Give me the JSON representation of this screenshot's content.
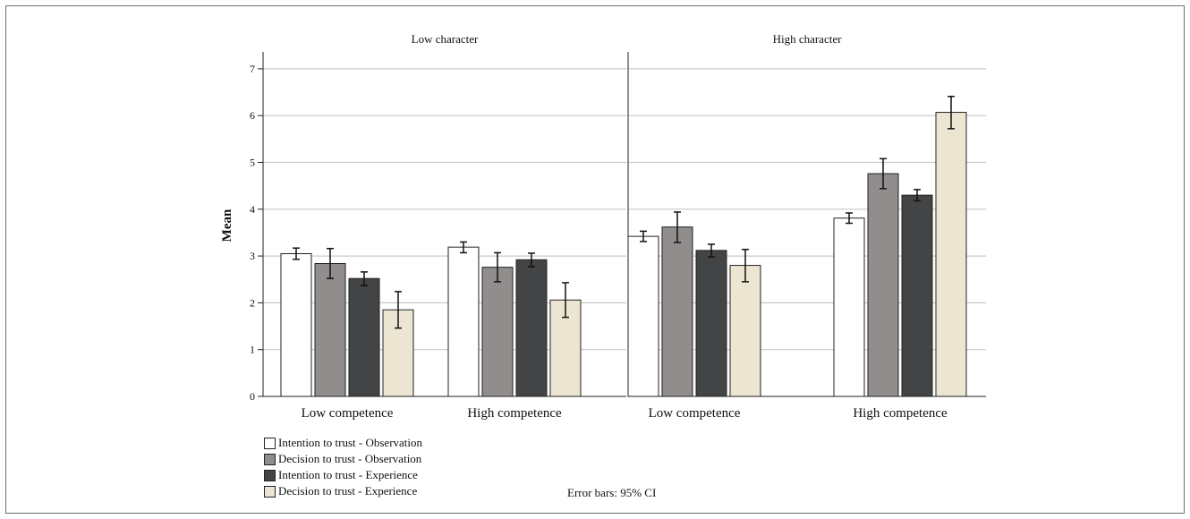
{
  "chart_data": {
    "type": "bar",
    "ylabel": "Mean",
    "ylim": [
      0,
      7
    ],
    "yticks": [
      0,
      1,
      2,
      3,
      4,
      5,
      6,
      7
    ],
    "grid": true,
    "legend_position": "bottom-left",
    "footnote": "Error bars: 95% CI",
    "panels": [
      {
        "title": "Low character",
        "categories": [
          "Low competence",
          "High competence"
        ],
        "series": [
          {
            "name": "Intention to trust - Observation",
            "values": [
              3.05,
              3.19
            ],
            "ci": [
              [
                2.93,
                3.17
              ],
              [
                3.07,
                3.3
              ]
            ]
          },
          {
            "name": "Decision to trust - Observation",
            "values": [
              2.84,
              2.76
            ],
            "ci": [
              [
                2.52,
                3.16
              ],
              [
                2.45,
                3.07
              ]
            ]
          },
          {
            "name": "Intention to trust - Experience",
            "values": [
              2.52,
              2.92
            ],
            "ci": [
              [
                2.37,
                2.66
              ],
              [
                2.77,
                3.06
              ]
            ]
          },
          {
            "name": "Decision to trust - Experience",
            "values": [
              1.85,
              2.06
            ],
            "ci": [
              [
                1.46,
                2.24
              ],
              [
                1.69,
                2.43
              ]
            ]
          }
        ]
      },
      {
        "title": "High character",
        "categories": [
          "Low competence",
          "High competence"
        ],
        "series": [
          {
            "name": "Intention to trust - Observation",
            "values": [
              3.42,
              3.81
            ],
            "ci": [
              [
                3.31,
                3.53
              ],
              [
                3.7,
                3.92
              ]
            ]
          },
          {
            "name": "Decision to trust - Observation",
            "values": [
              3.62,
              4.76
            ],
            "ci": [
              [
                3.29,
                3.94
              ],
              [
                4.44,
                5.08
              ]
            ]
          },
          {
            "name": "Intention to trust - Experience",
            "values": [
              3.12,
              4.3
            ],
            "ci": [
              [
                2.98,
                3.25
              ],
              [
                4.18,
                4.42
              ]
            ]
          },
          {
            "name": "Decision to trust - Experience",
            "values": [
              2.8,
              6.07
            ],
            "ci": [
              [
                2.45,
                3.14
              ],
              [
                5.72,
                6.41
              ]
            ]
          }
        ]
      }
    ]
  },
  "colors": {
    "Intention to trust - Observation": "#ffffff",
    "Decision to trust - Observation": "#918d8c",
    "Intention to trust - Experience": "#434446",
    "Decision to trust - Experience": "#ebe5d2",
    "gridline": "#c8c8c8",
    "axis": "#222222"
  }
}
